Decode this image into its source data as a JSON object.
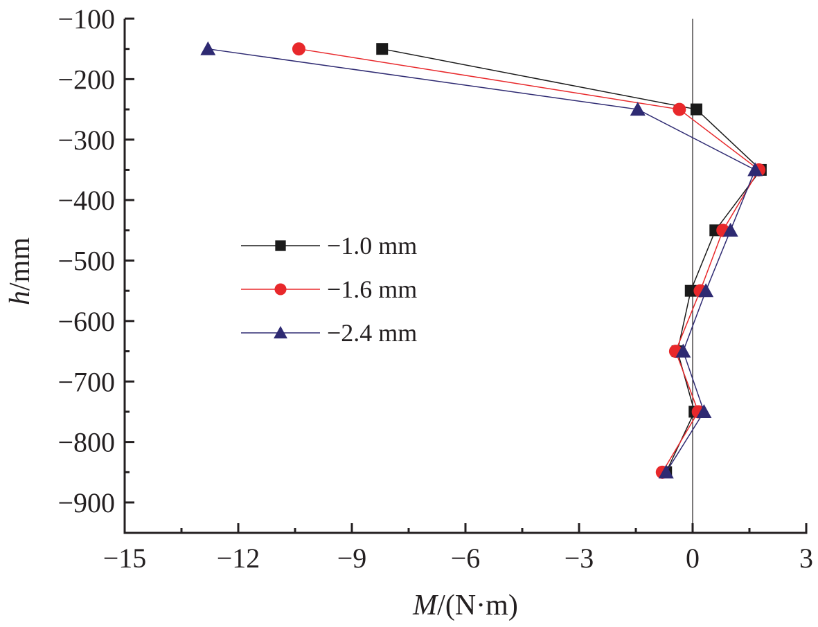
{
  "chart_data": {
    "type": "line",
    "title": "",
    "xlabel": "M/(N·m)",
    "xlabel_italic_part": "M",
    "xlabel_rest": "/(N·m)",
    "ylabel": "h/mm",
    "ylabel_italic_part": "h",
    "ylabel_rest": "/mm",
    "xlim": [
      -15,
      3
    ],
    "ylim": [
      -950,
      -100
    ],
    "x_ticks": [
      -15,
      -12,
      -9,
      -6,
      -3,
      0,
      3
    ],
    "x_tick_labels": [
      "−15",
      "−12",
      "−9",
      "−6",
      "−3",
      "0",
      "3"
    ],
    "x_minor_ticks": [
      -13.5,
      -10.5,
      -7.5,
      -4.5,
      -1.5,
      1.5
    ],
    "y_ticks": [
      -100,
      -200,
      -300,
      -400,
      -500,
      -600,
      -700,
      -800,
      -900
    ],
    "y_tick_labels": [
      "−100",
      "−200",
      "−300",
      "−400",
      "−500",
      "−600",
      "−700",
      "−800",
      "−900"
    ],
    "y_minor_ticks": [
      -150,
      -250,
      -350,
      -450,
      -550,
      -650,
      -750,
      -850
    ],
    "grid": false,
    "zero_line": true,
    "legend_position": "center-left",
    "y": [
      -150,
      -250,
      -350,
      -450,
      -550,
      -650,
      -750,
      -850
    ],
    "series": [
      {
        "name": "−1.0 mm",
        "marker": "square",
        "color": "#1a1a1a",
        "x": [
          -8.2,
          0.1,
          1.8,
          0.6,
          -0.05,
          -0.4,
          0.05,
          -0.7
        ]
      },
      {
        "name": "−1.6 mm",
        "marker": "circle",
        "color": "#e8282b",
        "x": [
          -10.4,
          -0.35,
          1.75,
          0.8,
          0.2,
          -0.45,
          0.15,
          -0.8
        ]
      },
      {
        "name": "−2.4 mm",
        "marker": "triangle",
        "color": "#2e2a72",
        "x": [
          -12.8,
          -1.45,
          1.65,
          1.0,
          0.35,
          -0.25,
          0.3,
          -0.7
        ]
      }
    ]
  }
}
